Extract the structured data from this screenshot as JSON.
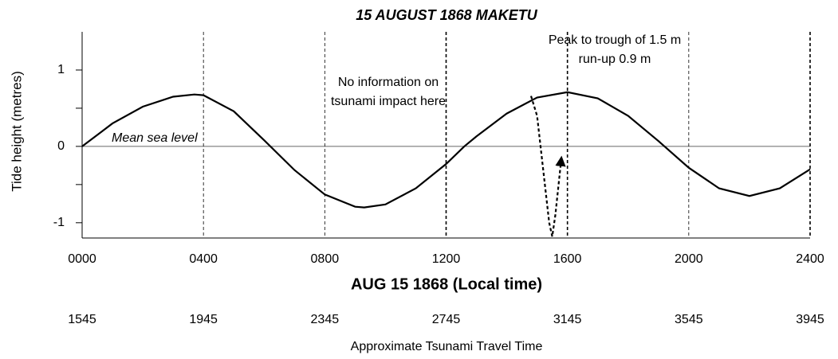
{
  "chart_data": {
    "type": "line",
    "title": "15 AUGUST 1868 MAKETU",
    "y_label": "Tide height (metres)",
    "x_label": "AUG 15 1868 (Local time)",
    "x2_label": "Approximate Tsunami Travel Time",
    "xlim": [
      0,
      24
    ],
    "xticks": [
      {
        "value": 0,
        "label": "0000"
      },
      {
        "value": 4,
        "label": "0400"
      },
      {
        "value": 8,
        "label": "0800"
      },
      {
        "value": 12,
        "label": "1200"
      },
      {
        "value": 16,
        "label": "1600"
      },
      {
        "value": 20,
        "label": "2000"
      },
      {
        "value": 24,
        "label": "2400"
      }
    ],
    "x2tick_labels": [
      "1545",
      "1945",
      "2345",
      "2745",
      "3145",
      "3545",
      "3945"
    ],
    "ylim": [
      -1.2,
      1.5
    ],
    "yticks": [
      -1,
      0,
      1
    ],
    "yminor_ticks": [
      -0.5,
      0.5
    ],
    "series": [
      {
        "name": "Tide",
        "color": "#000000",
        "dashed": false,
        "x": [
          0,
          1,
          2,
          3,
          3.7,
          4,
          5,
          6,
          7,
          8,
          9,
          9.3,
          10,
          11,
          12,
          12.6,
          13,
          14,
          15,
          16,
          17,
          18,
          19,
          20,
          21,
          22,
          23,
          24
        ],
        "values": [
          0,
          0.3,
          0.52,
          0.65,
          0.68,
          0.67,
          0.46,
          0.08,
          -0.31,
          -0.63,
          -0.79,
          -0.8,
          -0.76,
          -0.55,
          -0.23,
          0,
          0.13,
          0.43,
          0.64,
          0.71,
          0.63,
          0.4,
          0.07,
          -0.28,
          -0.55,
          -0.65,
          -0.55,
          -0.3
        ]
      },
      {
        "name": "Tsunami",
        "color": "#000000",
        "dashed": true,
        "x": [
          14.8,
          15.0,
          15.2,
          15.4,
          15.5,
          15.6,
          15.8
        ],
        "values": [
          0.66,
          0.4,
          -0.3,
          -1.0,
          -1.18,
          -0.9,
          -0.15
        ]
      }
    ],
    "annotations": [
      "Mean sea level",
      "No information on",
      "tsunami impact here",
      "Peak to trough of 1.5 m",
      "run-up 0.9 m"
    ]
  }
}
